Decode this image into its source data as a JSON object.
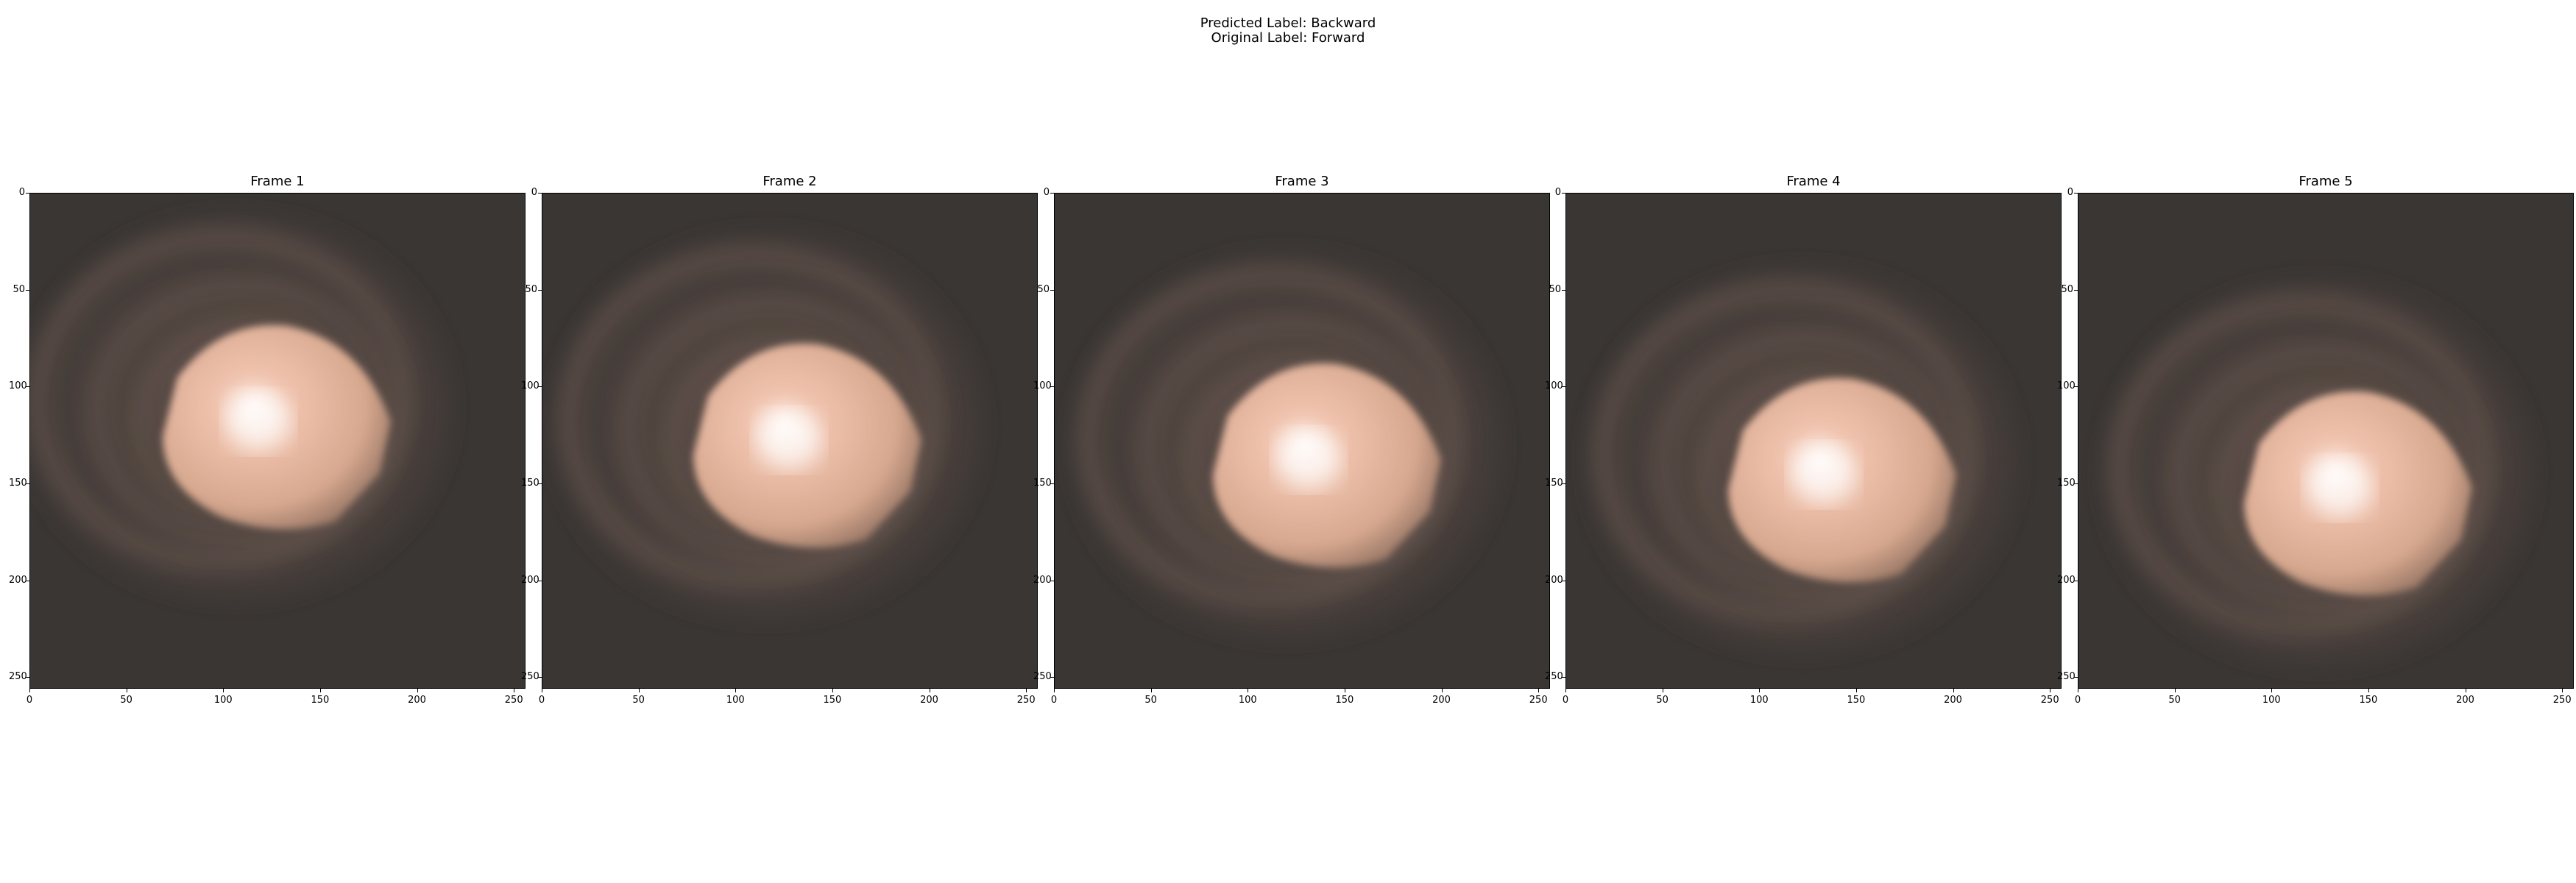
{
  "suptitle": {
    "predicted": "Predicted Label: Backward",
    "original": "Original Label: Forward"
  },
  "frames": [
    {
      "title": "Frame 1"
    },
    {
      "title": "Frame 2"
    },
    {
      "title": "Frame 3"
    },
    {
      "title": "Frame 4"
    },
    {
      "title": "Frame 5"
    }
  ],
  "axis": {
    "y_ticks": [
      "0",
      "50",
      "100",
      "150",
      "200",
      "250"
    ],
    "x_ticks": [
      "0",
      "50",
      "100",
      "150",
      "200",
      "250"
    ]
  },
  "colors": {
    "background_dark": "#3a3634",
    "ring": "#6b5850",
    "glow_core": "#fff4ef",
    "glow_mid": "#f0c3ae",
    "glow_edge": "#9c7a68"
  }
}
